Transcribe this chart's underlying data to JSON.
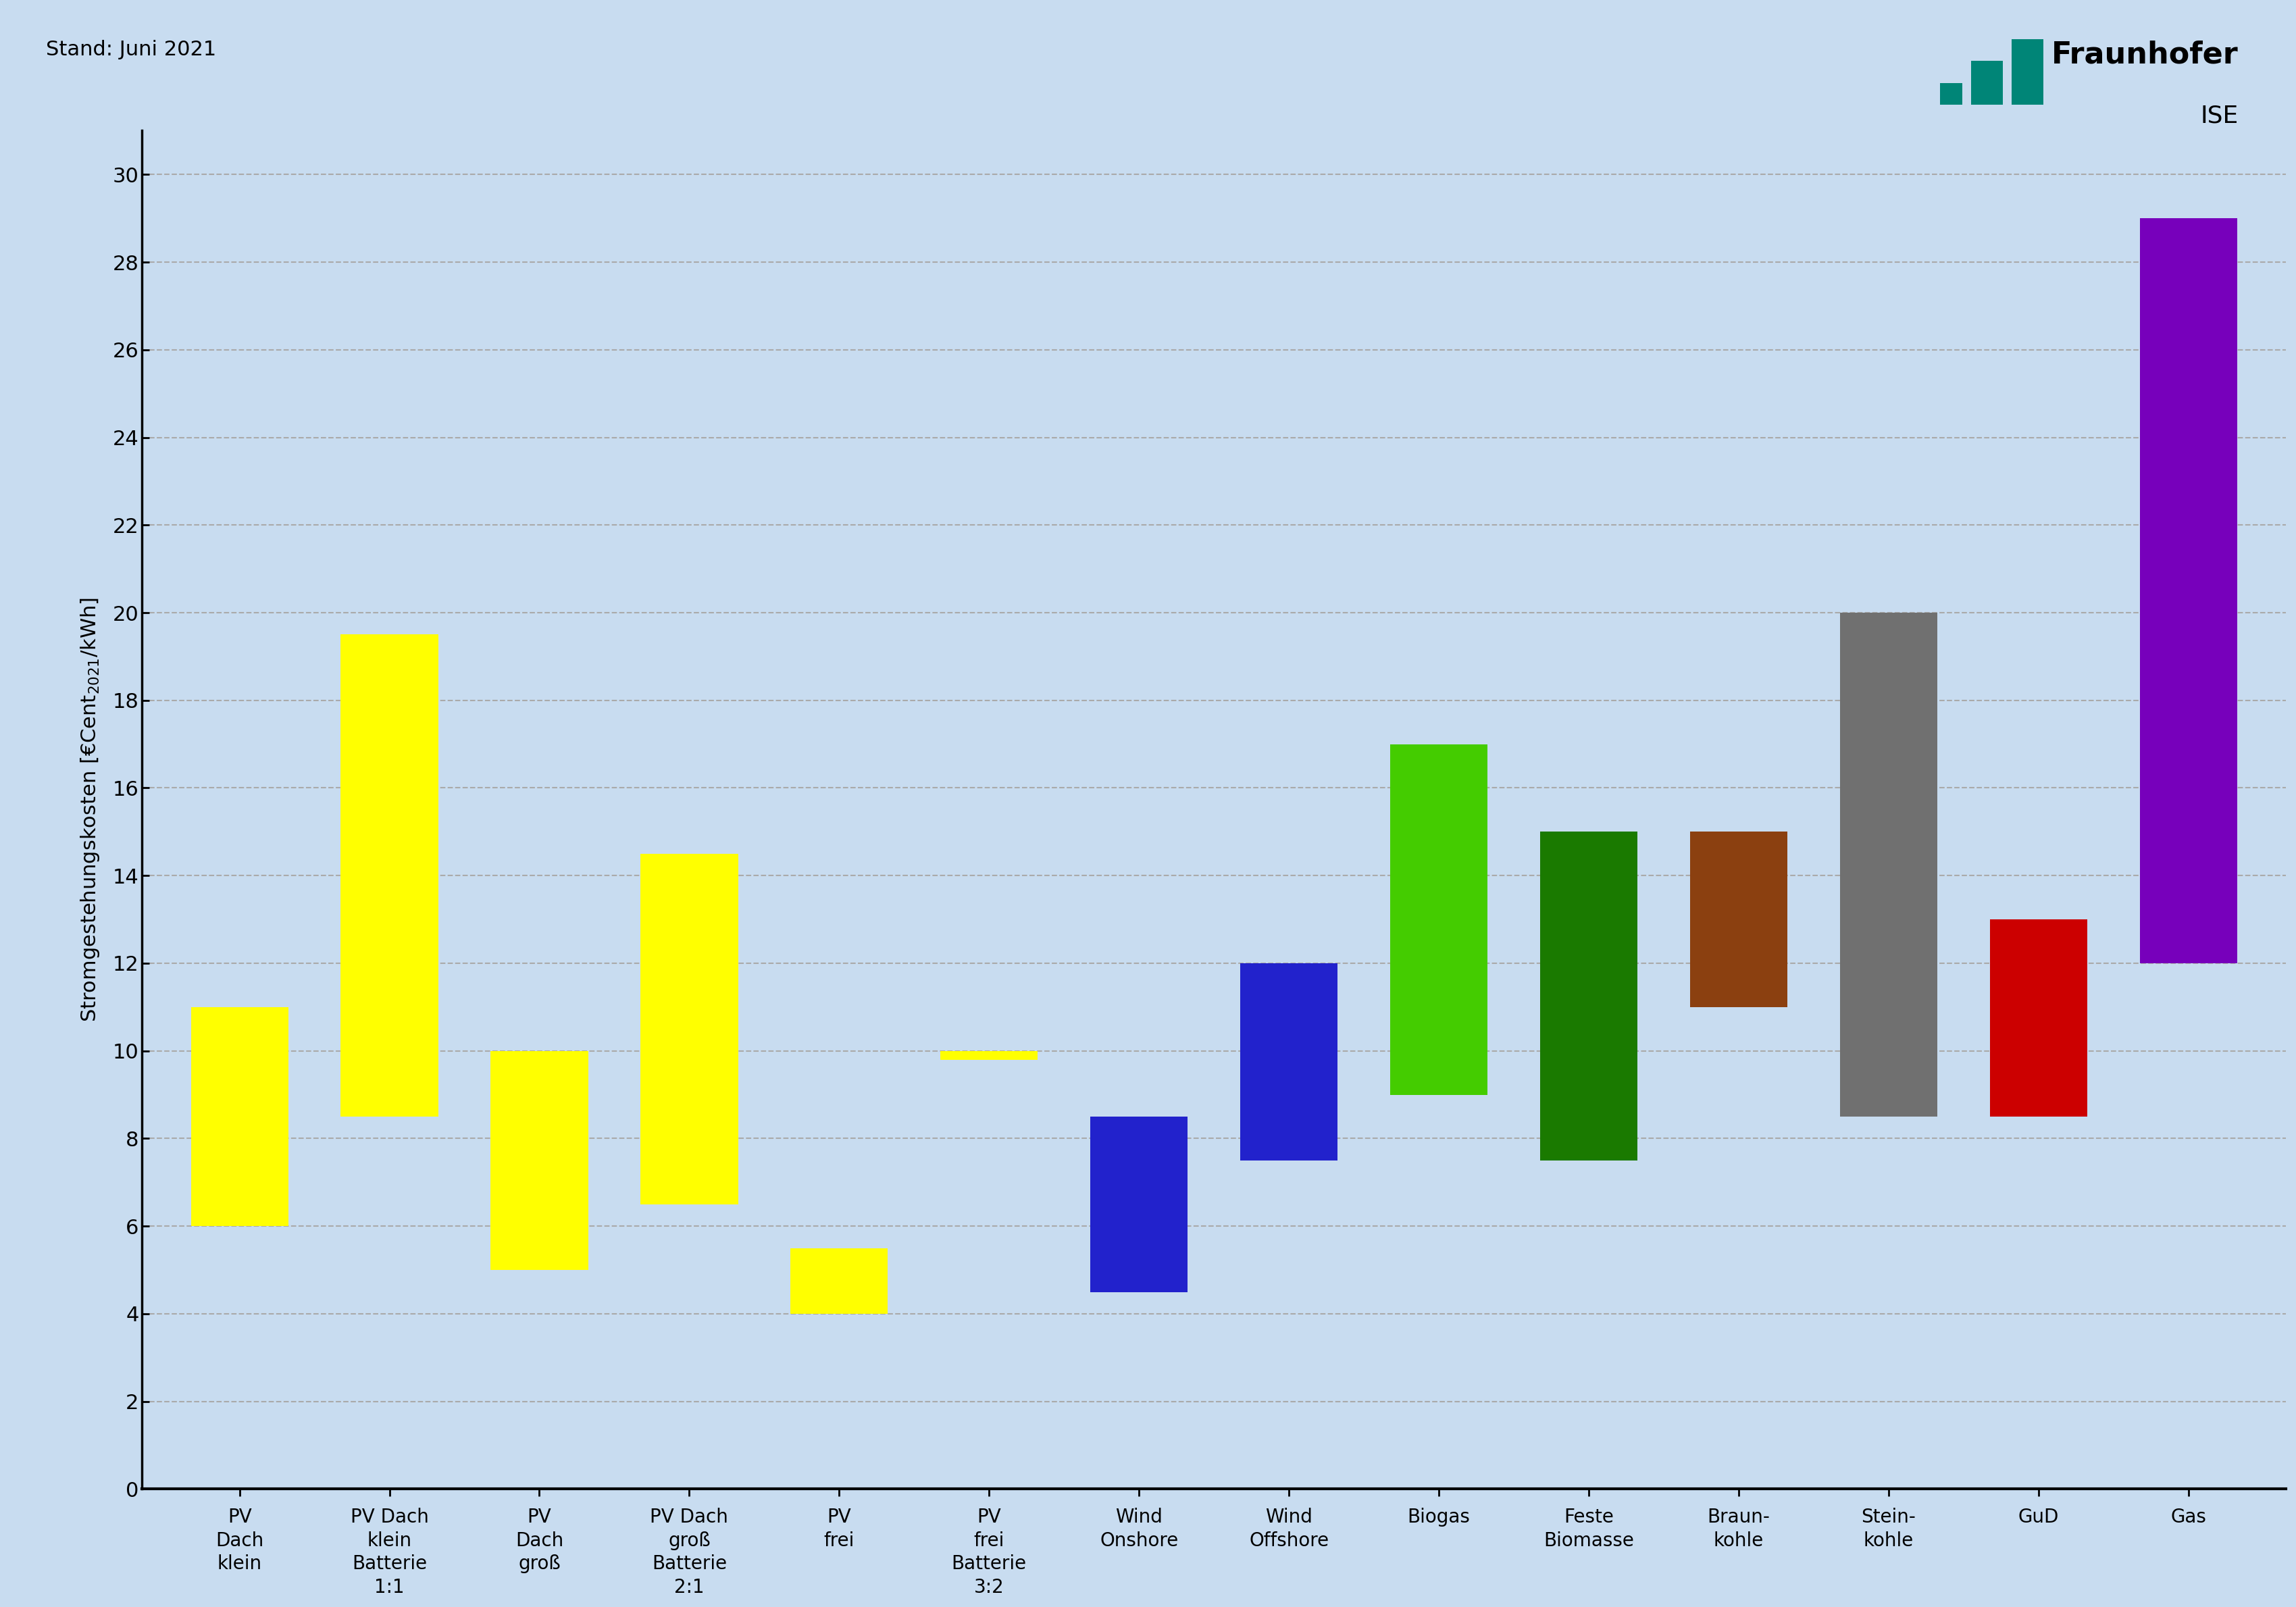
{
  "categories": [
    "PV\nDach\nklein",
    "PV Dach\nklein\nBatterie\n1:1",
    "PV\nDach\ngroß",
    "PV Dach\ngroß\nBatterie\n2:1",
    "PV\nfrei",
    "PV\nfrei\nBatterie\n3:2",
    "Wind\nOnshore",
    "Wind\nOffshore",
    "Biogas",
    "Feste\nBiomasse",
    "Braun-\nkohle",
    "Stein-\nkohle",
    "GuD",
    "Gas"
  ],
  "bar_bottoms": [
    6.0,
    8.5,
    5.0,
    6.5,
    4.0,
    9.8,
    4.5,
    7.5,
    9.0,
    7.5,
    11.0,
    8.5,
    8.5,
    12.0
  ],
  "bar_tops": [
    11.0,
    19.5,
    10.0,
    14.5,
    5.5,
    10.0,
    8.5,
    12.0,
    17.0,
    15.0,
    15.0,
    20.0,
    13.0,
    29.0
  ],
  "bar_colors": [
    "#FFFF00",
    "#FFFF00",
    "#FFFF00",
    "#FFFF00",
    "#FFFF00",
    "#FFFF00",
    "#2222CC",
    "#2222CC",
    "#44CC00",
    "#1A7A00",
    "#8B4010",
    "#707070",
    "#CC0000",
    "#7700BB"
  ],
  "background_color": "#C8DCF0",
  "ylabel": "Stromgestehungskosten [€Cent$_{2021}$/kWh]",
  "ylim": [
    0,
    31
  ],
  "yticks": [
    0,
    2,
    4,
    6,
    8,
    10,
    12,
    14,
    16,
    18,
    20,
    22,
    24,
    26,
    28,
    30
  ],
  "stand_text": "Stand: Juni 2021",
  "grid_color": "#AAAAAA",
  "fraunhofer_text": "Fraunhofer",
  "ise_text": "ISE"
}
